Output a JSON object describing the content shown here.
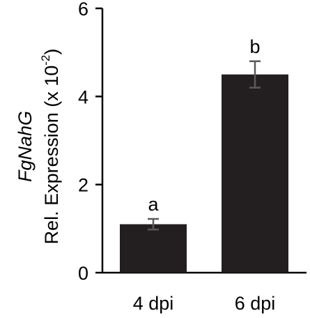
{
  "chart_data": {
    "type": "bar",
    "categories": [
      "4 dpi",
      "6 dpi"
    ],
    "values": [
      1.1,
      4.5
    ],
    "error": [
      0.12,
      0.3
    ],
    "significance": [
      "a",
      "b"
    ],
    "ylim": [
      0,
      6
    ],
    "yticks": [
      0,
      2,
      4,
      6
    ],
    "ylabel_gene": "FgNahG",
    "ylabel": "Rel. Expression (x 10",
    "ylabel_exp": "-2",
    "ylabel_tail": ")",
    "xlabel": "",
    "bar_color": "#231f20",
    "error_color": "#5a5a5a",
    "grid": false,
    "legend": "none"
  }
}
